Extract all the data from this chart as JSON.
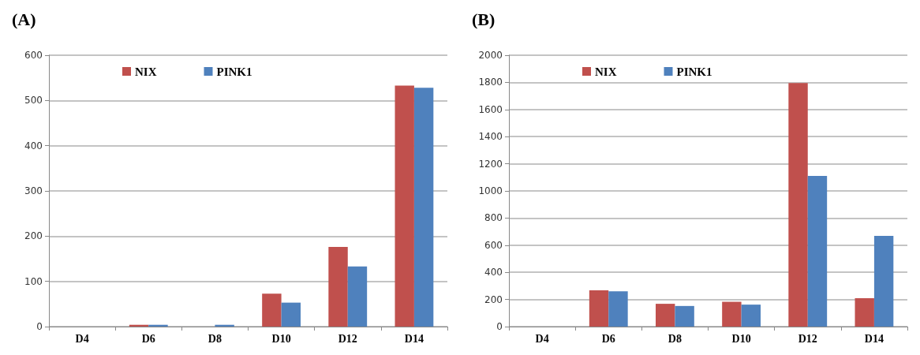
{
  "chart_data": [
    {
      "type": "bar",
      "title": "(A)",
      "categories": [
        "D4",
        "D6",
        "D8",
        "D10",
        "D12",
        "D14"
      ],
      "series": [
        {
          "name": "NIX",
          "color": "#c0504d",
          "values": [
            0,
            4,
            0,
            73,
            176,
            533
          ]
        },
        {
          "name": "PINK1",
          "color": "#4f81bd",
          "values": [
            0,
            4,
            4,
            53,
            133,
            528
          ]
        }
      ],
      "ylim": [
        0,
        600
      ],
      "yticks": [
        0,
        100,
        200,
        300,
        400,
        500,
        600
      ],
      "grid": "y",
      "legend": "top left"
    },
    {
      "type": "bar",
      "title": "(B)",
      "categories": [
        "D4",
        "D6",
        "D8",
        "D10",
        "D12",
        "D14"
      ],
      "series": [
        {
          "name": "NIX",
          "color": "#c0504d",
          "values": [
            0,
            268,
            168,
            183,
            1795,
            210
          ]
        },
        {
          "name": "PINK1",
          "color": "#4f81bd",
          "values": [
            0,
            260,
            152,
            162,
            1110,
            668
          ]
        }
      ],
      "ylim": [
        0,
        2000
      ],
      "yticks": [
        0,
        200,
        400,
        600,
        800,
        1000,
        1200,
        1400,
        1600,
        1800,
        2000
      ],
      "grid": "y",
      "legend": "top left"
    }
  ]
}
